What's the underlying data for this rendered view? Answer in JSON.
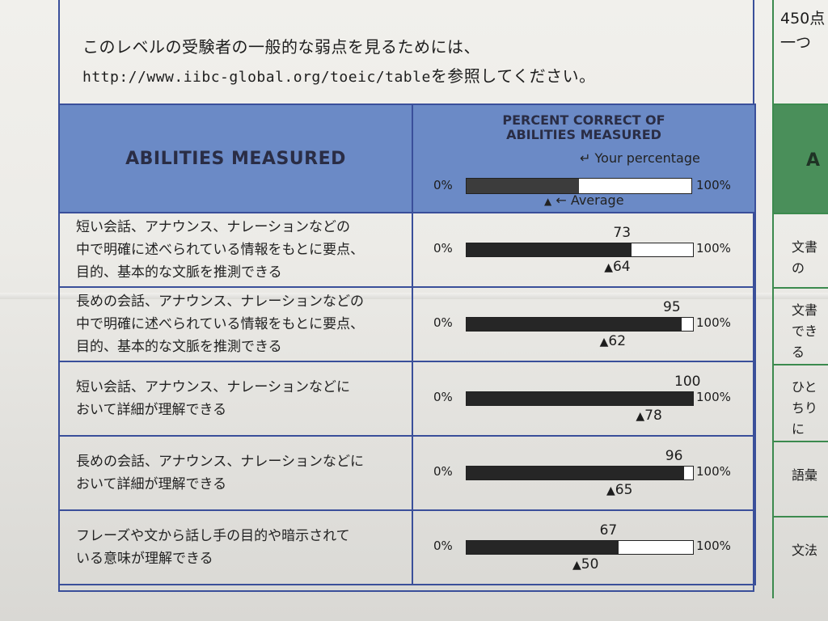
{
  "intro": {
    "line1": "このレベルの受験者の一般的な弱点を見るためには、",
    "url": "http://www.iibc-global.org/toeic/table",
    "line2_suffix": "を参照してください。"
  },
  "header": {
    "abilities_label": "ABILITIES MEASURED",
    "percent_title_line1": "PERCENT CORRECT OF",
    "percent_title_line2": "ABILITIES MEASURED",
    "your_percentage_label": "Your percentage",
    "average_label": "Average",
    "zero_label": "0%",
    "hundred_label": "100%"
  },
  "rows": [
    {
      "desc1": "短い会話、アナウンス、ナレーションなどの",
      "desc2": "中で明確に述べられている情報をもとに要点、",
      "desc3": "目的、基本的な文脈を推測できる",
      "your": "73",
      "avg": "64"
    },
    {
      "desc1": "長めの会話、アナウンス、ナレーションなどの",
      "desc2": "中で明確に述べられている情報をもとに要点、",
      "desc3": "目的、基本的な文脈を推測できる",
      "your": "95",
      "avg": "62"
    },
    {
      "desc1": "短い会話、アナウンス、ナレーションなどに",
      "desc2": "おいて詳細が理解できる",
      "desc3": "",
      "your": "100",
      "avg": "78"
    },
    {
      "desc1": "長めの会話、アナウンス、ナレーションなどに",
      "desc2": "おいて詳細が理解できる",
      "desc3": "",
      "your": "96",
      "avg": "65"
    },
    {
      "desc1": "フレーズや文から話し手の目的や暗示されて",
      "desc2": "いる意味が理解できる",
      "desc3": "",
      "your": "67",
      "avg": "50"
    }
  ],
  "right_column": {
    "top_line1": "450点",
    "top_line2": "一つ",
    "header_partial": "A",
    "cells": [
      {
        "line1": "文書の",
        "line2": ""
      },
      {
        "line1": "文書",
        "line2": "できる"
      },
      {
        "line1": "ひと",
        "line2": "ちりに"
      },
      {
        "line1": "語彙",
        "line2": ""
      },
      {
        "line1": "文法",
        "line2": ""
      }
    ]
  },
  "colors": {
    "table_border": "#3a4f9a",
    "header_blue": "#6b8ac6",
    "header_green": "#4a8f5a",
    "bar_fill": "#262626"
  }
}
